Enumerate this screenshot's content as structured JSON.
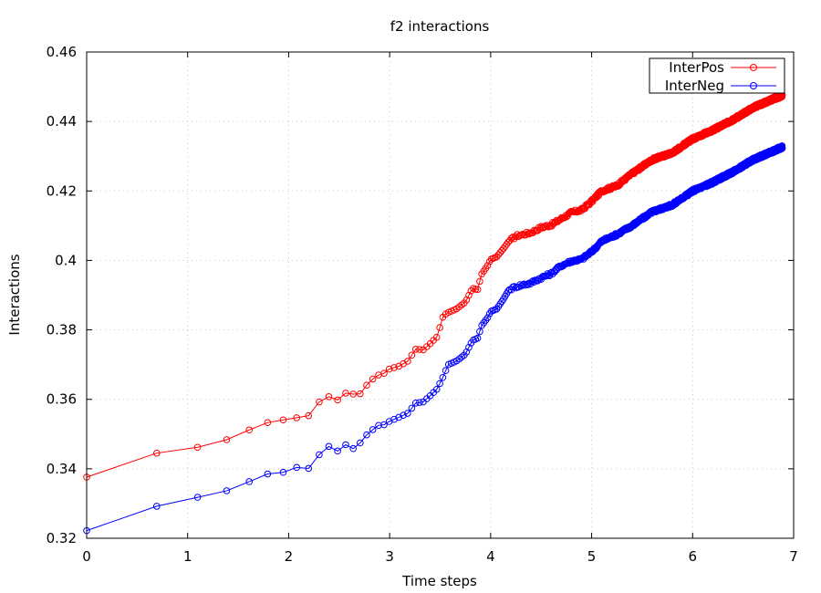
{
  "chart_data": {
    "type": "line",
    "title": "f2 interactions",
    "xlabel": "Time steps",
    "ylabel": "Interactions",
    "xlim": [
      0,
      7
    ],
    "ylim": [
      0.32,
      0.46
    ],
    "x_ticks": [
      0,
      1,
      2,
      3,
      4,
      5,
      6,
      7
    ],
    "x_tick_labels": [
      "0",
      "1",
      "2",
      "3",
      "4",
      "5",
      "6",
      "7"
    ],
    "y_ticks": [
      0.32,
      0.34,
      0.36,
      0.38,
      0.4,
      0.42,
      0.44,
      0.46
    ],
    "y_tick_labels": [
      "0.32",
      "0.34",
      "0.36",
      "0.38",
      "0.4",
      "0.42",
      "0.44",
      "0.46"
    ],
    "grid": true,
    "legend_position": "top-right",
    "marker": "open-circle",
    "series": [
      {
        "name": "InterPos",
        "color": "#ff0000",
        "anchors": [
          [
            0,
            0.3376
          ],
          [
            0.69,
            0.3445
          ],
          [
            1.1,
            0.3462
          ],
          [
            1.39,
            0.3484
          ],
          [
            1.61,
            0.3512
          ],
          [
            1.79,
            0.3533
          ],
          [
            1.95,
            0.3541
          ],
          [
            2.08,
            0.3547
          ],
          [
            2.2,
            0.3553
          ],
          [
            2.3,
            0.3592
          ],
          [
            2.4,
            0.3608
          ],
          [
            2.48,
            0.3597
          ],
          [
            2.56,
            0.3618
          ],
          [
            2.64,
            0.3615
          ],
          [
            2.71,
            0.3616
          ],
          [
            2.77,
            0.364
          ],
          [
            2.83,
            0.3658
          ],
          [
            2.89,
            0.367
          ],
          [
            2.94,
            0.3674
          ],
          [
            3.0,
            0.3688
          ],
          [
            3.09,
            0.3695
          ],
          [
            3.18,
            0.371
          ],
          [
            3.26,
            0.3745
          ],
          [
            3.33,
            0.3742
          ],
          [
            3.4,
            0.376
          ],
          [
            3.47,
            0.378
          ],
          [
            3.53,
            0.384
          ],
          [
            3.58,
            0.385
          ],
          [
            3.66,
            0.386
          ],
          [
            3.75,
            0.388
          ],
          [
            3.82,
            0.392
          ],
          [
            3.87,
            0.3915
          ],
          [
            3.91,
            0.396
          ],
          [
            3.97,
            0.3985
          ],
          [
            4.0,
            0.4003
          ],
          [
            4.06,
            0.401
          ],
          [
            4.13,
            0.4035
          ],
          [
            4.18,
            0.4055
          ],
          [
            4.25,
            0.407
          ],
          [
            4.4,
            0.408
          ],
          [
            4.5,
            0.4095
          ],
          [
            4.6,
            0.4102
          ],
          [
            4.7,
            0.412
          ],
          [
            4.8,
            0.4138
          ],
          [
            4.9,
            0.4145
          ],
          [
            5.0,
            0.417
          ],
          [
            5.1,
            0.42
          ],
          [
            5.25,
            0.4215
          ],
          [
            5.4,
            0.425
          ],
          [
            5.6,
            0.429
          ],
          [
            5.8,
            0.431
          ],
          [
            6.0,
            0.435
          ],
          [
            6.2,
            0.4375
          ],
          [
            6.4,
            0.4405
          ],
          [
            6.6,
            0.444
          ],
          [
            6.8,
            0.4465
          ],
          [
            6.9,
            0.4476
          ]
        ]
      },
      {
        "name": "InterNeg",
        "color": "#0000ff",
        "anchors": [
          [
            0,
            0.3222
          ],
          [
            0.69,
            0.3292
          ],
          [
            1.1,
            0.3318
          ],
          [
            1.39,
            0.3337
          ],
          [
            1.61,
            0.3363
          ],
          [
            1.79,
            0.3385
          ],
          [
            1.95,
            0.339
          ],
          [
            2.08,
            0.3404
          ],
          [
            2.2,
            0.3401
          ],
          [
            2.3,
            0.344
          ],
          [
            2.4,
            0.3465
          ],
          [
            2.48,
            0.345
          ],
          [
            2.56,
            0.347
          ],
          [
            2.64,
            0.3458
          ],
          [
            2.71,
            0.3475
          ],
          [
            2.77,
            0.3497
          ],
          [
            2.83,
            0.3512
          ],
          [
            2.89,
            0.3525
          ],
          [
            2.94,
            0.3526
          ],
          [
            3.0,
            0.3537
          ],
          [
            3.09,
            0.3548
          ],
          [
            3.18,
            0.356
          ],
          [
            3.26,
            0.359
          ],
          [
            3.33,
            0.3592
          ],
          [
            3.4,
            0.361
          ],
          [
            3.47,
            0.363
          ],
          [
            3.53,
            0.3665
          ],
          [
            3.58,
            0.37
          ],
          [
            3.66,
            0.371
          ],
          [
            3.75,
            0.373
          ],
          [
            3.82,
            0.377
          ],
          [
            3.87,
            0.3775
          ],
          [
            3.91,
            0.3812
          ],
          [
            3.97,
            0.3835
          ],
          [
            4.0,
            0.3853
          ],
          [
            4.06,
            0.386
          ],
          [
            4.13,
            0.389
          ],
          [
            4.18,
            0.3915
          ],
          [
            4.25,
            0.3925
          ],
          [
            4.4,
            0.3935
          ],
          [
            4.5,
            0.395
          ],
          [
            4.6,
            0.3962
          ],
          [
            4.7,
            0.3985
          ],
          [
            4.8,
            0.3998
          ],
          [
            4.9,
            0.4003
          ],
          [
            5.0,
            0.4025
          ],
          [
            5.1,
            0.4055
          ],
          [
            5.25,
            0.4075
          ],
          [
            5.4,
            0.41
          ],
          [
            5.6,
            0.414
          ],
          [
            5.8,
            0.416
          ],
          [
            6.0,
            0.42
          ],
          [
            6.2,
            0.4225
          ],
          [
            6.4,
            0.4255
          ],
          [
            6.6,
            0.429
          ],
          [
            6.8,
            0.4315
          ],
          [
            6.9,
            0.4328
          ]
        ]
      }
    ]
  }
}
